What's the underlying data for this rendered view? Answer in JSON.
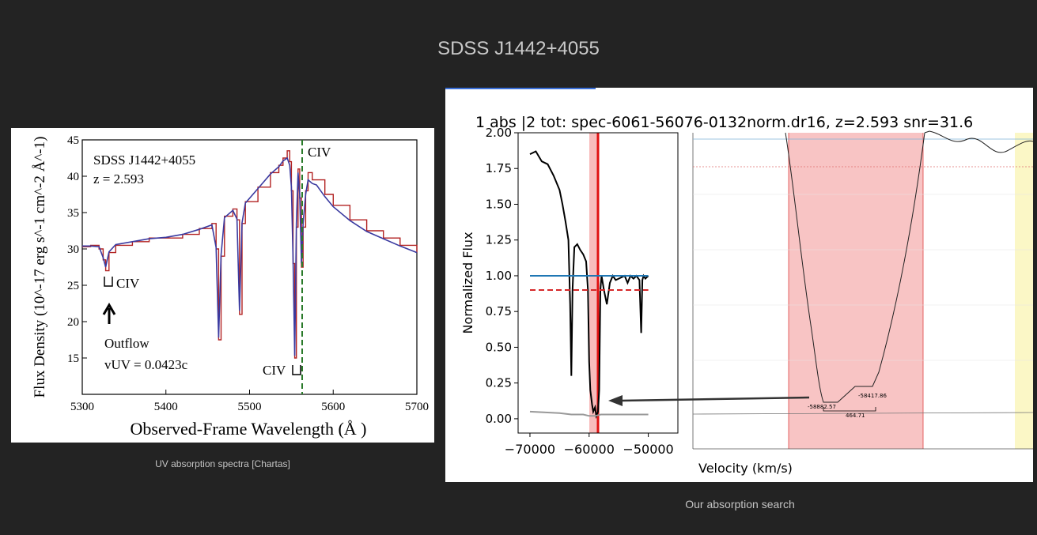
{
  "slide": {
    "title": "SDSS J1442+4055",
    "caption_left": "UV absorption spectra [Chartas]",
    "caption_right": "Our absorption search"
  },
  "chart_data": [
    {
      "type": "line",
      "title": "",
      "xlabel": "Observed-Frame Wavelength (Å )",
      "ylabel": "Flux Density  (10^-17 erg s^-1 cm^-2 Å^-1)",
      "xlim": [
        5300,
        5700
      ],
      "ylim": [
        10,
        45
      ],
      "xticks": [
        "5300",
        "5400",
        "5500",
        "5600",
        "5700"
      ],
      "yticks": [
        "15",
        "20",
        "25",
        "30",
        "35",
        "40",
        "45"
      ],
      "annotations": {
        "object": "SDSS J1442+4055",
        "redshift": "z = 2.593",
        "civ_top": "CIV",
        "civ_left": "CIV",
        "civ_bottom": "CIV",
        "outflow": "Outflow",
        "velocity": "vUV = 0.0423c"
      },
      "series": [
        {
          "color": "#b22222",
          "x": [
            5300,
            5310,
            5320,
            5325,
            5328,
            5332,
            5340,
            5360,
            5380,
            5400,
            5420,
            5440,
            5455,
            5460,
            5463,
            5466,
            5470,
            5480,
            5485,
            5488,
            5491,
            5495,
            5510,
            5525,
            5535,
            5540,
            5545,
            5548,
            5550,
            5552,
            5554,
            5556,
            5558,
            5560,
            5562,
            5564,
            5567,
            5570,
            5575,
            5580,
            5590,
            5600,
            5620,
            5640,
            5660,
            5680,
            5700
          ],
          "y": [
            30.3,
            30.5,
            30.0,
            28.5,
            27.0,
            29.5,
            30.5,
            31.0,
            31.5,
            31.5,
            32.0,
            32.8,
            33.5,
            30.0,
            17.5,
            29.0,
            34.5,
            35.5,
            34.0,
            21.0,
            33.5,
            36.5,
            38.5,
            40.5,
            41.5,
            42.5,
            43.5,
            42.0,
            38.0,
            28.0,
            15.0,
            33.0,
            41.0,
            37.0,
            27.5,
            33.0,
            38.0,
            40.5,
            39.5,
            39.5,
            37.5,
            36.0,
            34.0,
            32.5,
            31.5,
            30.5,
            29.5
          ]
        },
        {
          "color": "#3a3aa0",
          "x": [
            5300,
            5310,
            5320,
            5325,
            5328,
            5332,
            5340,
            5360,
            5380,
            5400,
            5420,
            5440,
            5455,
            5460,
            5463,
            5466,
            5470,
            5480,
            5485,
            5488,
            5491,
            5495,
            5510,
            5525,
            5535,
            5540,
            5545,
            5548,
            5550,
            5552,
            5554,
            5556,
            5558,
            5560,
            5562,
            5564,
            5567,
            5570,
            5575,
            5580,
            5590,
            5600,
            5620,
            5640,
            5660,
            5680,
            5700
          ],
          "y": [
            30.4,
            30.4,
            30.3,
            28.8,
            27.5,
            29.6,
            30.6,
            31.0,
            31.4,
            31.6,
            32.0,
            32.7,
            33.3,
            30.2,
            17.8,
            29.2,
            34.3,
            35.3,
            34.1,
            21.5,
            33.6,
            36.3,
            38.3,
            40.3,
            41.3,
            42.1,
            42.5,
            41.5,
            38.5,
            28.5,
            15.3,
            33.5,
            40.5,
            37.5,
            28.0,
            33.5,
            37.5,
            39.5,
            39.0,
            38.8,
            37.2,
            35.8,
            33.9,
            32.4,
            31.4,
            30.4,
            29.5
          ]
        }
      ]
    },
    {
      "type": "line",
      "title": "1 abs |2 tot: spec-6061-56076-0132norm.dr16, z=2.593 snr=31.6",
      "xlabel": "",
      "ylabel": "Normalized Flux",
      "xlim": [
        -72000,
        -45000
      ],
      "ylim": [
        -0.1,
        2.0
      ],
      "xticks": [
        "−70000",
        "−60000",
        "−50000"
      ],
      "yticks": [
        "0.00",
        "0.25",
        "0.50",
        "0.75",
        "1.00",
        "1.25",
        "1.50",
        "1.75",
        "2.00"
      ],
      "series": [
        {
          "color": "#000000",
          "x": [
            -70000,
            -69000,
            -68000,
            -67000,
            -66000,
            -65000,
            -64500,
            -64000,
            -63500,
            -63200,
            -63000,
            -62800,
            -62500,
            -62000,
            -61500,
            -61000,
            -60500,
            -60200,
            -60000,
            -59800,
            -59500,
            -59300,
            -59000,
            -58800,
            -58500,
            -58300,
            -58100,
            -57900,
            -57500,
            -57000,
            -56500,
            -56000,
            -55500,
            -55000,
            -54000,
            -53500,
            -53000,
            -52500,
            -52000,
            -51500,
            -51200,
            -51000,
            -50800,
            -50500,
            -50000
          ],
          "y": [
            1.85,
            1.87,
            1.8,
            1.78,
            1.7,
            1.6,
            1.5,
            1.38,
            1.25,
            0.8,
            0.3,
            0.9,
            1.2,
            1.22,
            1.18,
            1.15,
            1.1,
            0.9,
            0.4,
            0.2,
            0.1,
            0.05,
            0.08,
            0.02,
            0.05,
            0.2,
            0.9,
            1.0,
            0.9,
            0.8,
            0.95,
            1.0,
            0.97,
            0.98,
            1.0,
            0.95,
            1.0,
            0.98,
            1.0,
            0.97,
            0.6,
            0.97,
            1.0,
            0.98,
            1.0
          ]
        },
        {
          "color": "#999999",
          "x": [
            -70000,
            -65000,
            -63000,
            -61000,
            -60000,
            -59000,
            -58000,
            -56000,
            -54000,
            -52000,
            -50000
          ],
          "y": [
            0.05,
            0.04,
            0.03,
            0.03,
            0.02,
            0.02,
            0.03,
            0.03,
            0.03,
            0.03,
            0.03
          ]
        },
        {
          "name": "continuum",
          "color": "#1f77b4",
          "x": [
            -70000,
            -50000
          ],
          "y": [
            1.0,
            1.0
          ]
        },
        {
          "name": "threshold",
          "color": "#d62728",
          "x": [
            -70000,
            -50000
          ],
          "y": [
            0.9,
            0.9
          ]
        }
      ],
      "shaded_band": [
        -58900,
        -58400
      ]
    },
    {
      "type": "line",
      "title": "",
      "xlabel": "Velocity (km/s)",
      "annotations": [
        "-58882.57",
        "-58417.86",
        "464.71"
      ],
      "shaded_band": [
        -58900,
        -58400
      ]
    }
  ]
}
